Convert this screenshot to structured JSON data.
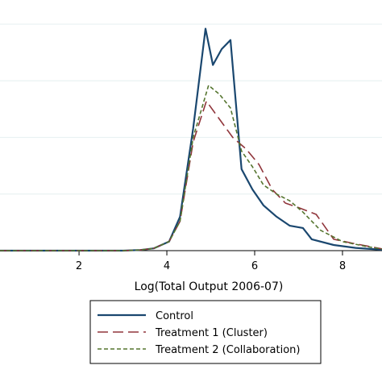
{
  "chart_data": {
    "type": "line",
    "title": "",
    "xlabel": "Log(Total Output 2006-07)",
    "ylabel": "",
    "xlim": [
      0.2,
      8.9
    ],
    "ylim": [
      0,
      1.0
    ],
    "x_ticks": [
      2,
      4,
      6,
      8
    ],
    "y_gridlines": [
      0,
      0.25,
      0.5,
      0.75,
      1.0
    ],
    "grid": true,
    "legend_position": "bottom",
    "series": [
      {
        "name": "Control",
        "color": "#1a476f",
        "style": "solid",
        "points": [
          [
            0.2,
            0.0
          ],
          [
            1,
            0.0
          ],
          [
            2,
            0.0
          ],
          [
            3,
            0.0
          ],
          [
            3.4,
            0.003
          ],
          [
            3.7,
            0.01
          ],
          [
            4.05,
            0.04
          ],
          [
            4.3,
            0.15
          ],
          [
            4.6,
            0.54
          ],
          [
            4.88,
            0.98
          ],
          [
            5.05,
            0.82
          ],
          [
            5.25,
            0.89
          ],
          [
            5.45,
            0.93
          ],
          [
            5.7,
            0.36
          ],
          [
            5.95,
            0.27
          ],
          [
            6.2,
            0.2
          ],
          [
            6.5,
            0.15
          ],
          [
            6.8,
            0.11
          ],
          [
            7.1,
            0.1
          ],
          [
            7.3,
            0.05
          ],
          [
            7.8,
            0.025
          ],
          [
            8.3,
            0.012
          ],
          [
            8.9,
            0.004
          ]
        ]
      },
      {
        "name": "Treatment 1 (Cluster)",
        "color": "#90353b",
        "style": "longdash",
        "points": [
          [
            0.2,
            0.0
          ],
          [
            1,
            0.0
          ],
          [
            2,
            0.0
          ],
          [
            3,
            0.0
          ],
          [
            3.4,
            0.003
          ],
          [
            3.7,
            0.01
          ],
          [
            4.05,
            0.04
          ],
          [
            4.3,
            0.13
          ],
          [
            4.6,
            0.48
          ],
          [
            4.9,
            0.66
          ],
          [
            5.2,
            0.58
          ],
          [
            5.5,
            0.5
          ],
          [
            5.8,
            0.45
          ],
          [
            6.1,
            0.38
          ],
          [
            6.4,
            0.27
          ],
          [
            6.7,
            0.21
          ],
          [
            7.0,
            0.19
          ],
          [
            7.4,
            0.16
          ],
          [
            7.8,
            0.05
          ],
          [
            8.3,
            0.03
          ],
          [
            8.9,
            0.008
          ]
        ]
      },
      {
        "name": "Treatment 2 (Collaboration)",
        "color": "#55752f",
        "style": "shortdash",
        "points": [
          [
            0.2,
            0.0
          ],
          [
            1,
            0.0
          ],
          [
            2,
            0.0
          ],
          [
            3,
            0.0
          ],
          [
            3.4,
            0.003
          ],
          [
            3.7,
            0.01
          ],
          [
            4.05,
            0.04
          ],
          [
            4.3,
            0.13
          ],
          [
            4.6,
            0.5
          ],
          [
            4.95,
            0.73
          ],
          [
            5.2,
            0.69
          ],
          [
            5.45,
            0.63
          ],
          [
            5.7,
            0.44
          ],
          [
            5.95,
            0.37
          ],
          [
            6.2,
            0.29
          ],
          [
            6.5,
            0.25
          ],
          [
            6.8,
            0.22
          ],
          [
            7.1,
            0.17
          ],
          [
            7.5,
            0.09
          ],
          [
            8.0,
            0.04
          ],
          [
            8.5,
            0.02
          ],
          [
            8.9,
            0.007
          ]
        ]
      }
    ]
  }
}
